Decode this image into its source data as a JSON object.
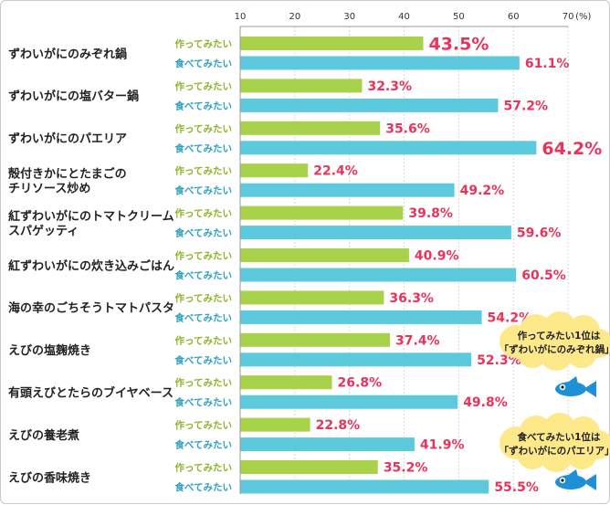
{
  "chart_data": {
    "type": "bar",
    "orientation": "horizontal",
    "xlim": [
      10,
      70
    ],
    "xticks": [
      "10",
      "20",
      "30",
      "40",
      "50",
      "60",
      "70"
    ],
    "x_unit": "(%)",
    "grid": true,
    "series": [
      {
        "name": "作ってみたい",
        "color": "#a8d24a",
        "label_color": "#8fb52a"
      },
      {
        "name": "食べてみたい",
        "color": "#5dc9dc",
        "label_color": "#2fa2bf"
      }
    ],
    "categories": [
      {
        "label": [
          "ずわいがにのみぞれ鍋"
        ],
        "make": 43.5,
        "make_label": "43.5%",
        "make_highlight": true,
        "eat": 61.1,
        "eat_label": "61.1%",
        "eat_highlight": false
      },
      {
        "label": [
          "ずわいがにの塩バター鍋"
        ],
        "make": 32.3,
        "make_label": "32.3%",
        "make_highlight": false,
        "eat": 57.2,
        "eat_label": "57.2%",
        "eat_highlight": false
      },
      {
        "label": [
          "ずわいがにのパエリア"
        ],
        "make": 35.6,
        "make_label": "35.6%",
        "make_highlight": false,
        "eat": 64.2,
        "eat_label": "64.2%",
        "eat_highlight": true
      },
      {
        "label": [
          "殻付きかにとたまごの",
          "チリソース炒め"
        ],
        "make": 22.4,
        "make_label": "22.4%",
        "make_highlight": false,
        "eat": 49.2,
        "eat_label": "49.2%",
        "eat_highlight": false
      },
      {
        "label": [
          "紅ずわいがにのトマトクリーム",
          "スパゲッティ"
        ],
        "make": 39.8,
        "make_label": "39.8%",
        "make_highlight": false,
        "eat": 59.6,
        "eat_label": "59.6%",
        "eat_highlight": false
      },
      {
        "label": [
          "紅ずわいがにの炊き込みごはん"
        ],
        "make": 40.9,
        "make_label": "40.9%",
        "make_highlight": false,
        "eat": 60.5,
        "eat_label": "60.5%",
        "eat_highlight": false
      },
      {
        "label": [
          "海の幸のごちそうトマトパスタ"
        ],
        "make": 36.3,
        "make_label": "36.3%",
        "make_highlight": false,
        "eat": 54.2,
        "eat_label": "54.2%",
        "eat_highlight": false
      },
      {
        "label": [
          "えびの塩麹焼き"
        ],
        "make": 37.4,
        "make_label": "37.4%",
        "make_highlight": false,
        "eat": 52.3,
        "eat_label": "52.3%",
        "eat_highlight": false
      },
      {
        "label": [
          "有頭えびとたらのブイヤベース"
        ],
        "make": 26.8,
        "make_label": "26.8%",
        "make_highlight": false,
        "eat": 49.8,
        "eat_label": "49.8%",
        "eat_highlight": false
      },
      {
        "label": [
          "えびの養老煮"
        ],
        "make": 22.8,
        "make_label": "22.8%",
        "make_highlight": false,
        "eat": 41.9,
        "eat_label": "41.9%",
        "eat_highlight": false
      },
      {
        "label": [
          "えびの香味焼き"
        ],
        "make": 35.2,
        "make_label": "35.2%",
        "make_highlight": false,
        "eat": 55.5,
        "eat_label": "55.5%",
        "eat_highlight": false
      }
    ],
    "annotations": [
      {
        "lines": [
          "作ってみたい1位は",
          "「ずわいがにのみぞれ鍋」!"
        ],
        "icon": "fish-icon",
        "fill": "#fde88a"
      },
      {
        "lines": [
          "食べてみたい1位は",
          "「ずわいがにのパエリア」!"
        ],
        "icon": "fish-icon",
        "fill": "#fde88a"
      }
    ]
  }
}
